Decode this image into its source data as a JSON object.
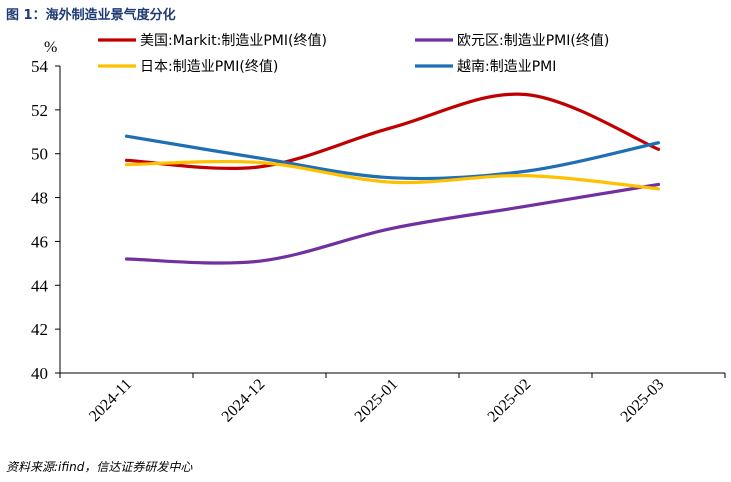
{
  "figure": {
    "title": "图 1：海外制造业景气度分化",
    "source": "资料来源:ifind，信达证券研发中心"
  },
  "colors": {
    "us": "#c00000",
    "eu": "#7030a0",
    "jp": "#ffc000",
    "vn": "#1f6fb5",
    "title": "#1f3b73"
  },
  "chart_data": {
    "type": "line",
    "title": "",
    "xlabel": "",
    "ylabel": "",
    "unit_label": "%",
    "categories": [
      "2024-11",
      "2024-12",
      "2025-01",
      "2025-02",
      "2025-03"
    ],
    "ylim": [
      40,
      54
    ],
    "yticks": [
      40,
      42,
      44,
      46,
      48,
      50,
      52,
      54
    ],
    "grid": false,
    "legend_position": "top",
    "series": [
      {
        "name": "美国:Markit:制造业PMI(终值)",
        "color_key": "us",
        "values": [
          49.7,
          49.4,
          51.2,
          52.7,
          50.2
        ]
      },
      {
        "name": "欧元区:制造业PMI(终值)",
        "color_key": "eu",
        "values": [
          45.2,
          45.1,
          46.6,
          47.6,
          48.6
        ]
      },
      {
        "name": "日本:制造业PMI(终值)",
        "color_key": "jp",
        "values": [
          49.5,
          49.6,
          48.7,
          49.0,
          48.4
        ]
      },
      {
        "name": "越南:制造业PMI",
        "color_key": "vn",
        "values": [
          50.8,
          49.8,
          48.9,
          49.2,
          50.5
        ]
      }
    ]
  }
}
